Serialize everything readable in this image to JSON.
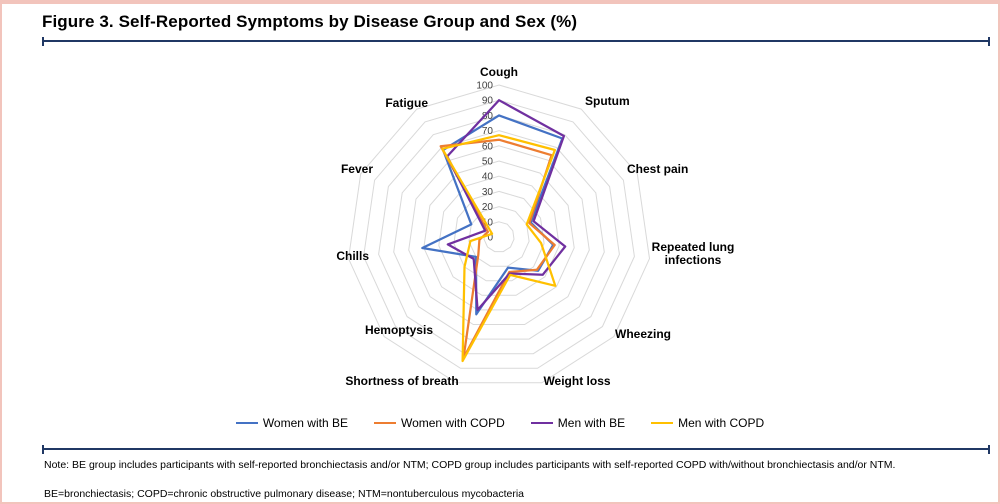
{
  "figure": {
    "title": "Figure 3. Self-Reported Symptoms by Disease Group and Sex (%)",
    "note_line1": "Note: BE group includes participants with self-reported bronchiectasis and/or NTM; COPD group includes participants with self-reported COPD with/without bronchiectasis and/or NTM.",
    "note_line2": "BE=bronchiectasis; COPD=chronic obstructive pulmonary disease; NTM=nontuberculous mycobacteria"
  },
  "chart_data": {
    "type": "radar",
    "title": "Self-Reported Symptoms by Disease Group and Sex (%)",
    "value_unit": "%",
    "axis_range": [
      0,
      100
    ],
    "ticks": [
      0,
      10,
      20,
      30,
      40,
      50,
      60,
      70,
      80,
      90,
      100
    ],
    "grid": "polygon-rings",
    "legend_position": "bottom",
    "categories": [
      "Cough",
      "Sputum",
      "Chest pain",
      "Repeated lung infections",
      "Wheezing",
      "Weight loss",
      "Shortness of breath",
      "Hemoptysis",
      "Chills",
      "Fever",
      "Fatigue"
    ],
    "series": [
      {
        "name": "Women with BE",
        "color": "#4472C4",
        "values": [
          80,
          77,
          23,
          36,
          34,
          21,
          53,
          20,
          51,
          20,
          68
        ]
      },
      {
        "name": "Women with COPD",
        "color": "#ED7D31",
        "values": [
          64,
          64,
          22,
          37,
          33,
          24,
          83,
          18,
          13,
          8,
          71
        ]
      },
      {
        "name": "Men with BE",
        "color": "#7030A0",
        "values": [
          90,
          79,
          25,
          44,
          38,
          25,
          50,
          22,
          34,
          10,
          63
        ]
      },
      {
        "name": "Men with COPD",
        "color": "#FFC000",
        "values": [
          67,
          68,
          20,
          28,
          49,
          26,
          85,
          30,
          19,
          5,
          69
        ]
      }
    ]
  },
  "colors": {
    "rule": "#203864",
    "page_border": "#F2C4BC",
    "gridline": "#D9D9D9",
    "tick_text": "#404040"
  }
}
